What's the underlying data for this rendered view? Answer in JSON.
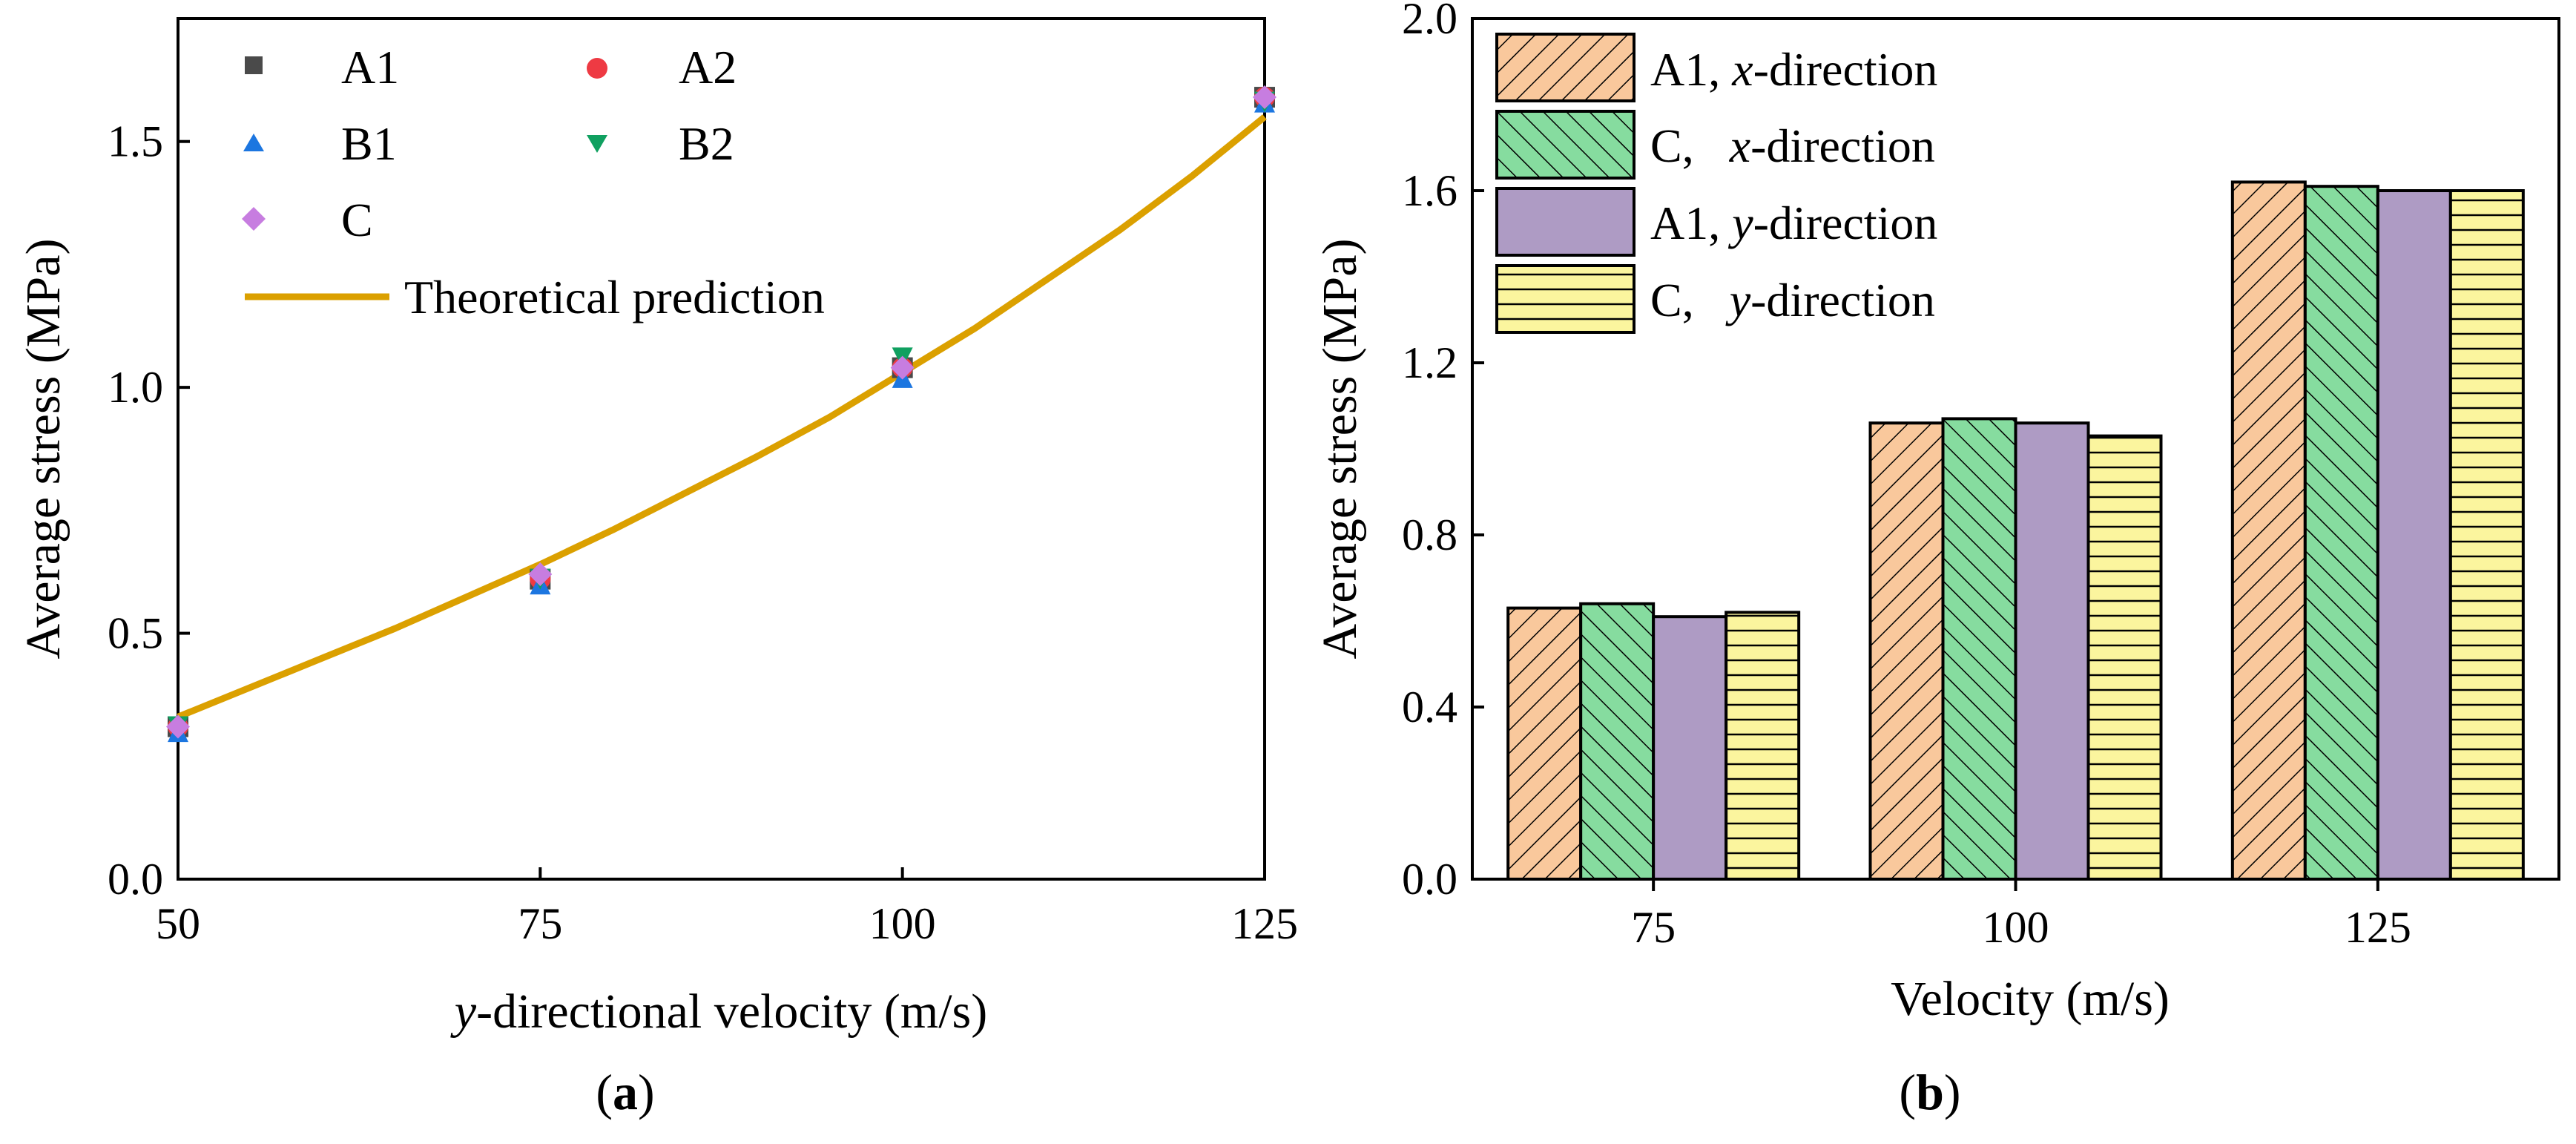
{
  "figure_captions": {
    "a": {
      "open": "(",
      "letter": "a",
      "close": ")"
    },
    "b": {
      "open": "(",
      "letter": "b",
      "close": ")"
    }
  },
  "colors": {
    "A1": "#4a4a4a",
    "A2": "#ee3a43",
    "B1": "#1c76e0",
    "B2": "#10a060",
    "C": "#c77de0",
    "theory": "#dba000",
    "bar_A1_x": "#f9c89c",
    "bar_C_x": "#86dc9f",
    "bar_A1_y": "#ae9bc4",
    "bar_C_y": "#fbf59e"
  },
  "chart_data": [
    {
      "id": "a",
      "type": "scatter",
      "title": "",
      "xlabel_italic": "y",
      "xlabel": "-directional velocity (m/s)",
      "ylabel": "Average stress (MPa)",
      "xlim": [
        50,
        125
      ],
      "ylim": [
        0,
        1.75
      ],
      "xticks": [
        "50",
        "75",
        "100",
        "125"
      ],
      "yticks": [
        "0.0",
        "0.5",
        "1.0",
        "1.5"
      ],
      "legend_position": "top-left",
      "series": [
        {
          "name": "A1",
          "marker": "square",
          "x": [
            50,
            75,
            100,
            125
          ],
          "y": [
            0.31,
            0.61,
            1.04,
            1.59
          ]
        },
        {
          "name": "A2",
          "marker": "circle",
          "x": [
            50,
            75,
            100,
            125
          ],
          "y": [
            0.31,
            0.61,
            1.04,
            1.59
          ]
        },
        {
          "name": "B1",
          "marker": "triangle-up",
          "x": [
            50,
            75,
            100,
            125
          ],
          "y": [
            0.3,
            0.6,
            1.02,
            1.58
          ]
        },
        {
          "name": "B2",
          "marker": "triangle-down",
          "x": [
            50,
            75,
            100,
            125
          ],
          "y": [
            0.31,
            0.61,
            1.06,
            1.58
          ]
        },
        {
          "name": "C",
          "marker": "diamond",
          "x": [
            50,
            75,
            100,
            125
          ],
          "y": [
            0.31,
            0.62,
            1.04,
            1.59
          ]
        }
      ],
      "line": {
        "name": "Theoretical prediction",
        "x": [
          50,
          55,
          60,
          65,
          70,
          75,
          80,
          85,
          90,
          95,
          100,
          105,
          110,
          115,
          120,
          125
        ],
        "y": [
          0.33,
          0.39,
          0.45,
          0.51,
          0.575,
          0.64,
          0.71,
          0.785,
          0.86,
          0.94,
          1.03,
          1.12,
          1.22,
          1.32,
          1.43,
          1.55
        ]
      }
    },
    {
      "id": "b",
      "type": "bar",
      "title": "",
      "xlabel": "Velocity (m/s)",
      "ylabel": "Average stress (MPa)",
      "ylim": [
        0,
        2.0
      ],
      "yticks": [
        "0.0",
        "0.4",
        "0.8",
        "1.2",
        "1.6",
        "2.0"
      ],
      "categories": [
        "75",
        "100",
        "125"
      ],
      "legend_position": "top-left",
      "series": [
        {
          "name": "A1, x-direction",
          "label_main": "A1, ",
          "label_italic": "x",
          "label_rest": "-direction",
          "pattern": "diag-up",
          "values": [
            0.63,
            1.06,
            1.62
          ]
        },
        {
          "name": "C, x-direction",
          "label_main": "C,   ",
          "label_italic": "x",
          "label_rest": "-direction",
          "pattern": "diag-down",
          "values": [
            0.64,
            1.07,
            1.61
          ]
        },
        {
          "name": "A1, y-direction",
          "label_main": "A1, ",
          "label_italic": "y",
          "label_rest": "-direction",
          "pattern": "solid",
          "values": [
            0.61,
            1.06,
            1.6
          ]
        },
        {
          "name": "C, y-direction",
          "label_main": "C,   ",
          "label_italic": "y",
          "label_rest": "-direction",
          "pattern": "horizontal",
          "values": [
            0.62,
            1.03,
            1.6
          ]
        }
      ]
    }
  ]
}
